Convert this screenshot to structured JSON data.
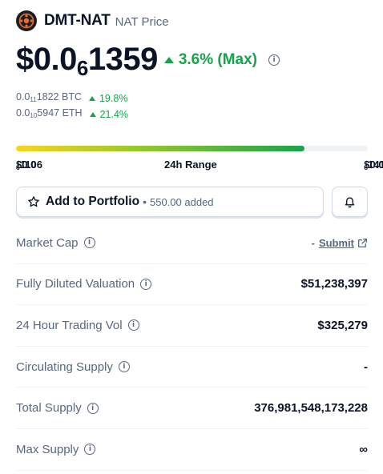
{
  "coin": {
    "name": "DMT-NAT",
    "subtitle": "NAT Price"
  },
  "price": {
    "prefix": "$0.0",
    "zeros_subscript": "6",
    "digits": "1359",
    "change": "3.6% (Max)",
    "change_color": "#16a34a"
  },
  "sub_prices": [
    {
      "prefix": "0.0",
      "subscript": "11",
      "digits": "1822 BTC",
      "change": "19.8%"
    },
    {
      "prefix": "0.0",
      "subscript": "10",
      "digits": "5947 ETH",
      "change": "21.4%"
    }
  ],
  "range": {
    "low_prefix": "$0.0",
    "low_sub": "6",
    "low_digits": "1106",
    "label": "24h Range",
    "high_prefix": "$0.0",
    "high_sub": "6",
    "high_digits": "1415",
    "fill_fraction": 0.82
  },
  "portfolio": {
    "label": "Add to Portfolio",
    "separator": "•",
    "added": "550.00 added"
  },
  "stats": {
    "market_cap": {
      "label": "Market Cap",
      "value_prefix": "-",
      "link": "Submit"
    },
    "fdv": {
      "label": "Fully Diluted Valuation",
      "value": "$51,238,397"
    },
    "volume": {
      "label": "24 Hour Trading Vol",
      "value": "$325,279"
    },
    "circulating": {
      "label": "Circulating Supply",
      "value": "-"
    },
    "total": {
      "label": "Total Supply",
      "value": "376,981,548,173,228"
    },
    "max": {
      "label": "Max Supply",
      "value": "∞"
    }
  },
  "icons": {
    "logo": "dmt-logo-icon",
    "star": "star-icon",
    "bell": "bell-icon",
    "info": "info-icon",
    "external": "external-link-icon"
  }
}
